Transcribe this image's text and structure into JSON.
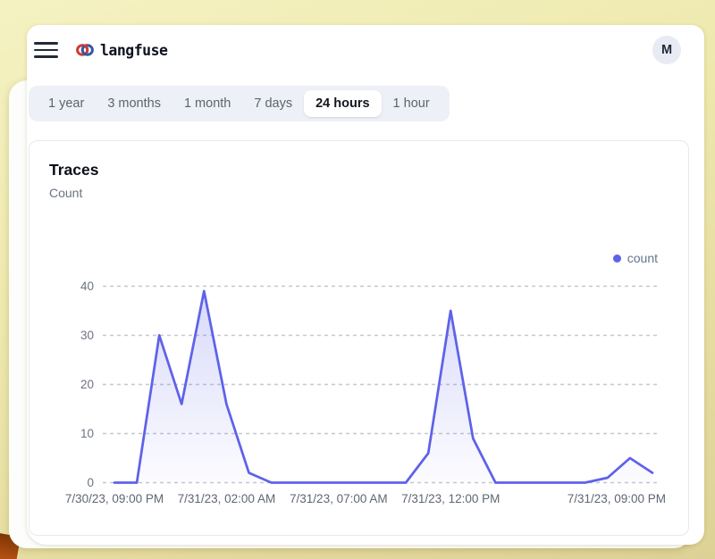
{
  "header": {
    "brand": "langfuse",
    "avatar_initial": "M"
  },
  "time_range_tabs": {
    "options": [
      "1 year",
      "3 months",
      "1 month",
      "7 days",
      "24 hours",
      "1 hour"
    ],
    "selected": "24 hours"
  },
  "chart_data": {
    "type": "area",
    "title": "Traces",
    "subtitle": "Count",
    "legend": [
      {
        "name": "count",
        "color": "#5e62e9"
      }
    ],
    "x_start": "7/30/23, 09:00 PM",
    "x_interval": "1 hour",
    "values": [
      0,
      0,
      30,
      16,
      39,
      16,
      2,
      0,
      0,
      0,
      0,
      0,
      0,
      0,
      6,
      35,
      9,
      0,
      0,
      0,
      0,
      0,
      1,
      5,
      2
    ],
    "x_ticks": [
      {
        "label": "7/30/23, 09:00 PM",
        "at": 0
      },
      {
        "label": "7/31/23, 02:00 AM",
        "at": 5
      },
      {
        "label": "7/31/23, 07:00 AM",
        "at": 10
      },
      {
        "label": "7/31/23, 12:00 PM",
        "at": 15
      },
      {
        "label": "7/31/23, 09:00 PM",
        "at": 22.4
      }
    ],
    "y_ticks": [
      0,
      10,
      20,
      30,
      40
    ],
    "ylim": [
      0,
      40
    ],
    "grid": "dashed-horizontal",
    "legend_position": "top-right"
  },
  "colors": {
    "accent_line": "#5e62e9",
    "frame_yellow": "#ece6a9",
    "corner_orange": "#a84a10",
    "tab_strip_bg": "#edf0f6",
    "card_border": "#e7e9ee"
  }
}
